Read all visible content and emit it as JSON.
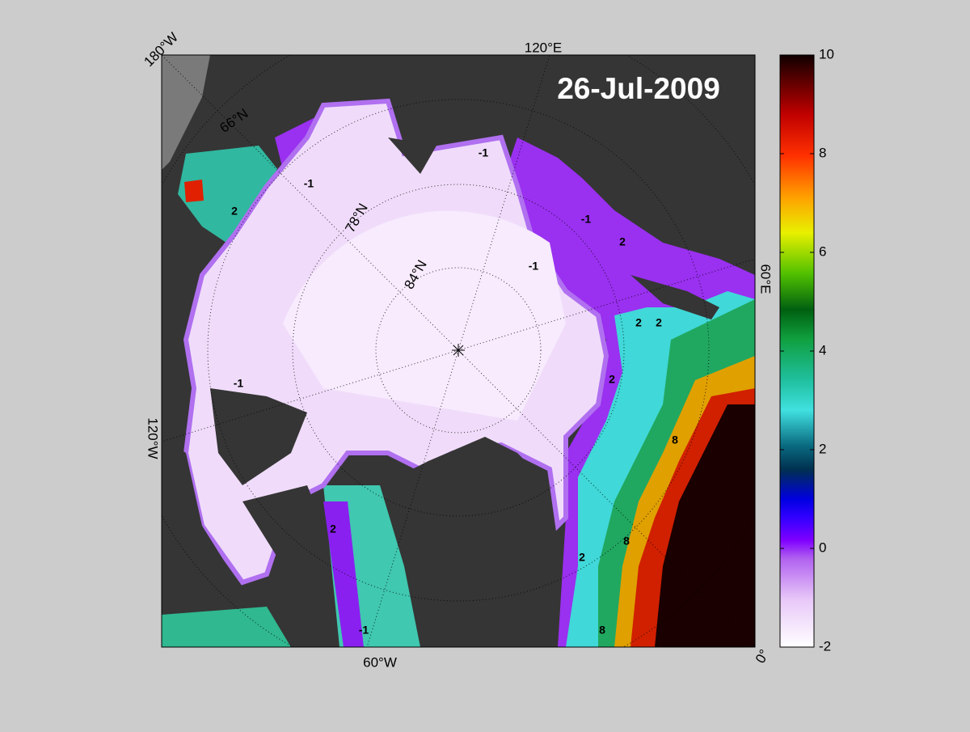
{
  "title": "26-Jul-2009",
  "colorbar": {
    "lim": [
      -2,
      10
    ],
    "ticks": [
      -2,
      0,
      2,
      4,
      6,
      8,
      10
    ]
  },
  "longitude_labels": [
    "180°W",
    "120°E",
    "60°E",
    "0°",
    "60°W",
    "120°W"
  ],
  "latitude_labels": [
    "66°N",
    "78°N",
    "84°N"
  ],
  "contour_labels": [
    -1,
    -1,
    -1,
    -1,
    2,
    2,
    2,
    2,
    2,
    2,
    8,
    8,
    8,
    -1,
    2,
    -1
  ]
}
